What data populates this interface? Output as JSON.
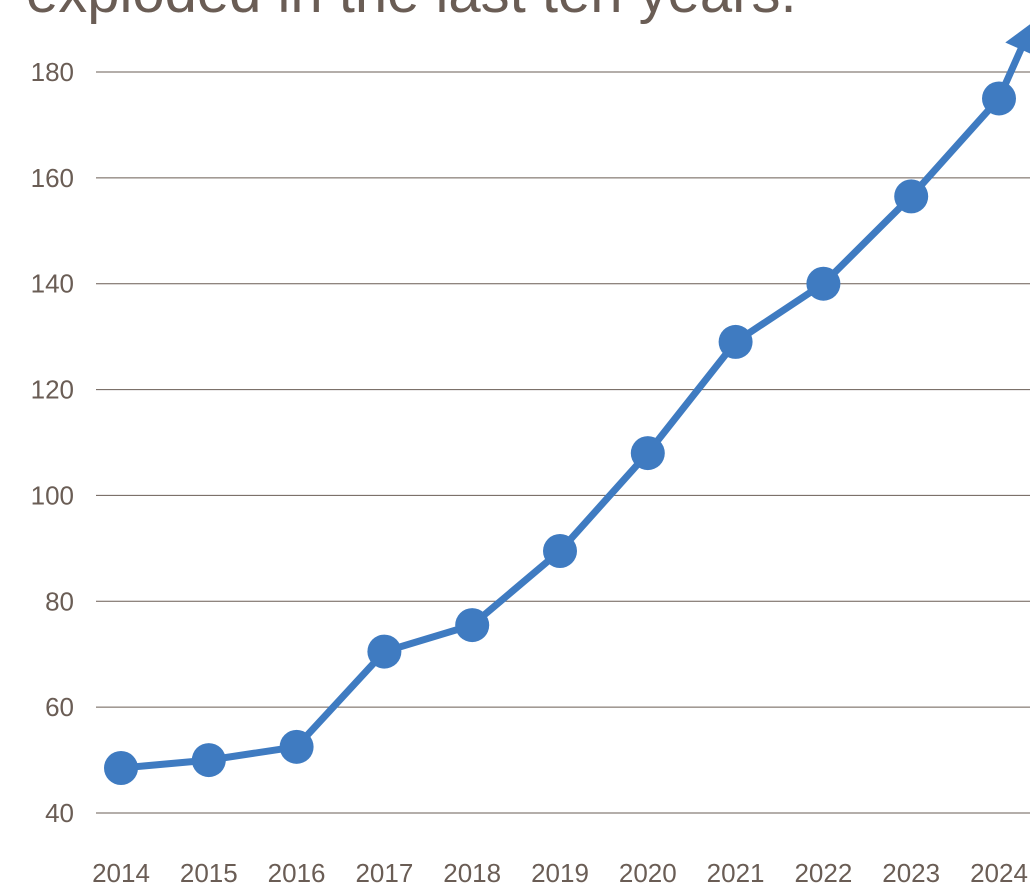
{
  "chart_data": {
    "type": "line",
    "title": "exploded in the last ten years.",
    "xlabel": "",
    "ylabel": "",
    "x": [
      "2014",
      "2015",
      "2016",
      "2017",
      "2018",
      "2019",
      "2020",
      "2021",
      "2022",
      "2023",
      "2024"
    ],
    "series": [
      {
        "values": [
          48.5,
          50,
          52.5,
          70.5,
          75.5,
          89.5,
          108,
          129,
          140,
          156.5,
          175
        ],
        "color": "#3f7bc1"
      }
    ],
    "ylim": [
      40,
      180
    ],
    "yticks": [
      "40",
      "60",
      "80",
      "100",
      "120",
      "140",
      "160",
      "180"
    ],
    "grid": true,
    "legend": "none",
    "trend_arrow": true
  }
}
